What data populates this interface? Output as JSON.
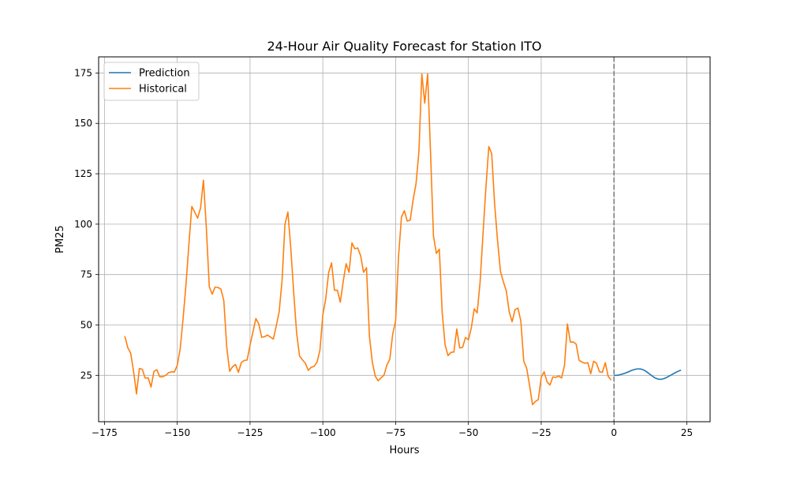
{
  "chart_data": {
    "type": "line",
    "title": "24-Hour Air Quality Forecast for Station ITO",
    "xlabel": "Hours",
    "ylabel": "PM25",
    "xlim": [
      -177,
      33
    ],
    "ylim": [
      2,
      183
    ],
    "xticks": [
      -175,
      -150,
      -125,
      -100,
      -75,
      -50,
      -25,
      0,
      25
    ],
    "yticks": [
      25,
      50,
      75,
      100,
      125,
      150,
      175
    ],
    "grid": true,
    "legend_position": "top-left",
    "vline": {
      "x": 0,
      "style": "dashed",
      "color": "#808080"
    },
    "series": [
      {
        "name": "Prediction",
        "color": "#1f77b4",
        "x": [
          0,
          1,
          2,
          3,
          4,
          5,
          6,
          7,
          8,
          9,
          10,
          11,
          12,
          13,
          14,
          15,
          16,
          17,
          18,
          19,
          20,
          21,
          22,
          23
        ],
        "y": [
          25.0,
          25.0,
          25.3,
          25.7,
          26.2,
          26.8,
          27.4,
          27.9,
          28.2,
          28.2,
          27.8,
          27.0,
          25.9,
          24.8,
          23.8,
          23.2,
          23.0,
          23.3,
          23.9,
          24.7,
          25.5,
          26.3,
          27.0,
          27.6
        ]
      },
      {
        "name": "Historical",
        "color": "#ff7f0e",
        "x": [
          -168,
          -167,
          -166,
          -165,
          -164,
          -163,
          -162,
          -161,
          -160,
          -159,
          -158,
          -157,
          -156,
          -155,
          -154,
          -153,
          -152,
          -151,
          -150,
          -149,
          -148,
          -147,
          -146,
          -145,
          -144,
          -143,
          -142,
          -141,
          -140,
          -139,
          -138,
          -137,
          -136,
          -135,
          -134,
          -133,
          -132,
          -131,
          -130,
          -129,
          -128,
          -127,
          -126,
          -125,
          -124,
          -123,
          -122,
          -121,
          -120,
          -119,
          -118,
          -117,
          -116,
          -115,
          -114,
          -113,
          -112,
          -111,
          -110,
          -109,
          -108,
          -107,
          -106,
          -105,
          -104,
          -103,
          -102,
          -101,
          -100,
          -99,
          -98,
          -97,
          -96,
          -95,
          -94,
          -93,
          -92,
          -91,
          -90,
          -89,
          -88,
          -87,
          -86,
          -85,
          -84,
          -83,
          -82,
          -81,
          -80,
          -79,
          -78,
          -77,
          -76,
          -75,
          -74,
          -73,
          -72,
          -71,
          -70,
          -69,
          -68,
          -67,
          -66,
          -65,
          -64,
          -63,
          -62,
          -61,
          -60,
          -59,
          -58,
          -57,
          -56,
          -55,
          -54,
          -53,
          -52,
          -51,
          -50,
          -49,
          -48,
          -47,
          -46,
          -45,
          -44,
          -43,
          -42,
          -41,
          -40,
          -39,
          -38,
          -37,
          -36,
          -35,
          -34,
          -33,
          -32,
          -31,
          -30,
          -29,
          -28,
          -27,
          -26,
          -25,
          -24,
          -23,
          -22,
          -21,
          -20,
          -19,
          -18,
          -17,
          -16,
          -15,
          -14,
          -13,
          -12,
          -11,
          -10,
          -9,
          -8,
          -7,
          -6,
          -5,
          -4,
          -3,
          -2,
          -1
        ],
        "y": [
          44.5,
          38.8,
          36.0,
          27.0,
          15.8,
          28.4,
          28.0,
          23.6,
          23.8,
          19.2,
          27.0,
          27.8,
          24.3,
          24.3,
          25.0,
          26.3,
          26.8,
          26.6,
          30.0,
          38.0,
          53.0,
          70.0,
          90.0,
          108.8,
          106.0,
          103.0,
          108.0,
          121.8,
          98.0,
          69.0,
          65.3,
          68.8,
          68.6,
          67.8,
          62.0,
          39.0,
          27.0,
          29.3,
          30.4,
          26.5,
          31.3,
          32.4,
          32.6,
          40.0,
          46.5,
          53.2,
          50.5,
          43.9,
          44.2,
          45.0,
          44.0,
          43.0,
          49.5,
          56.5,
          72.0,
          100.0,
          106.0,
          88.0,
          66.0,
          46.0,
          34.6,
          32.7,
          31.0,
          27.5,
          29.0,
          29.5,
          31.5,
          37.5,
          55.0,
          63.0,
          76.0,
          80.8,
          67.2,
          67.2,
          61.3,
          71.6,
          80.4,
          76.1,
          90.7,
          87.8,
          88.2,
          84.2,
          76.1,
          78.4,
          44.5,
          31.5,
          24.6,
          22.3,
          23.8,
          25.1,
          30.1,
          33.0,
          45.5,
          52.0,
          84.0,
          103.5,
          106.7,
          101.5,
          102.0,
          112.0,
          120.0,
          136.0,
          174.5,
          160.0,
          174.5,
          135.0,
          94.0,
          85.5,
          87.6,
          56.0,
          40.0,
          34.8,
          36.4,
          36.6,
          48.0,
          38.6,
          38.9,
          43.8,
          42.6,
          48.6,
          58.0,
          56.0,
          71.0,
          95.0,
          118.0,
          138.5,
          135.0,
          110.0,
          92.0,
          76.6,
          71.4,
          67.0,
          56.6,
          51.6,
          57.6,
          58.4,
          52.0,
          32.0,
          28.6,
          20.0,
          10.5,
          12.0,
          13.0,
          24.0,
          26.8,
          21.8,
          20.2,
          24.2,
          24.0,
          24.7,
          23.7,
          30.0,
          50.5,
          41.5,
          41.6,
          40.5,
          32.5,
          31.6,
          31.0,
          31.3,
          25.8,
          32.0,
          31.0,
          26.8,
          26.5,
          31.3,
          24.5,
          22.6
        ]
      }
    ]
  }
}
